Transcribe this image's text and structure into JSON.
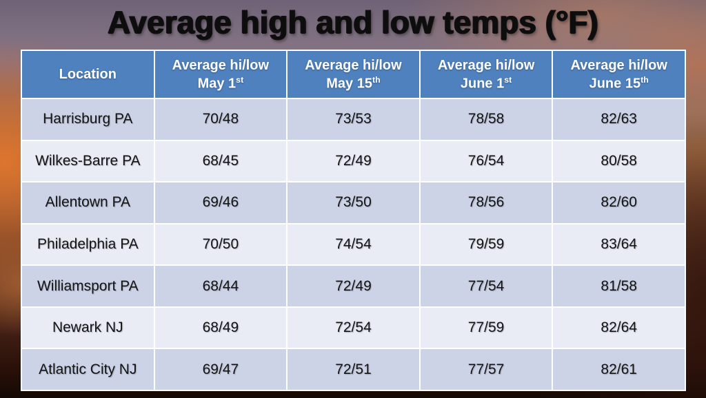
{
  "chart_data": {
    "type": "table",
    "title": "Average high and low temps (°F)",
    "columns": [
      {
        "title": "Location",
        "date": "",
        "sup": ""
      },
      {
        "title": "Average hi/low",
        "date": "May 1",
        "sup": "st"
      },
      {
        "title": "Average hi/low",
        "date": "May 15",
        "sup": "th"
      },
      {
        "title": "Average hi/low",
        "date": "June 1",
        "sup": "st"
      },
      {
        "title": "Average hi/low",
        "date": "June 15",
        "sup": "th"
      }
    ],
    "rows": [
      {
        "location": "Harrisburg PA",
        "values": [
          "70/48",
          "73/53",
          "78/58",
          "82/63"
        ]
      },
      {
        "location": "Wilkes-Barre PA",
        "values": [
          "68/45",
          "72/49",
          "76/54",
          "80/58"
        ]
      },
      {
        "location": "Allentown PA",
        "values": [
          "69/46",
          "73/50",
          "78/56",
          "82/60"
        ]
      },
      {
        "location": "Philadelphia PA",
        "values": [
          "70/50",
          "74/54",
          "79/59",
          "83/64"
        ]
      },
      {
        "location": "Williamsport PA",
        "values": [
          "68/44",
          "72/49",
          "77/54",
          "81/58"
        ]
      },
      {
        "location": "Newark NJ",
        "values": [
          "68/49",
          "72/54",
          "77/59",
          "82/64"
        ]
      },
      {
        "location": "Atlantic City NJ",
        "values": [
          "69/47",
          "72/51",
          "77/57",
          "82/61"
        ]
      }
    ],
    "colors": {
      "header_bg": "#4e81bd",
      "header_text": "#ffffff",
      "row_band_dark": "#ccd3e6",
      "row_band_light": "#e9ecf5",
      "body_text": "#141414",
      "grid": "#ffffff",
      "title_text": "#0d0d0d",
      "sky_orange": "#cb682c",
      "sky_purple_gray": "#8a7484",
      "sky_dark_bottom": "#140904"
    },
    "layout": {
      "legend": "none",
      "grid": "on",
      "banding": "alternating-rows"
    }
  }
}
